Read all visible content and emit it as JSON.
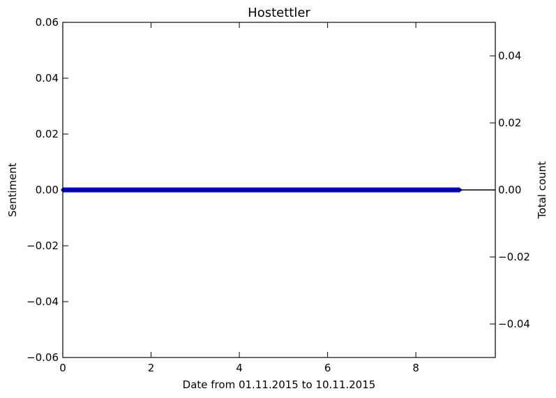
{
  "chart_data": {
    "type": "line",
    "title": "Hostettler",
    "xlabel": "Date from 01.11.2015 to 10.11.2015",
    "ylabel": "Sentiment",
    "y2label": "Total count",
    "xlim": [
      0,
      9.8
    ],
    "ylim": [
      -0.06,
      0.06
    ],
    "y2lim": [
      -0.05,
      0.05
    ],
    "x_ticks": [
      "0",
      "2",
      "4",
      "6",
      "8"
    ],
    "y_ticks": [
      "−0.06",
      "−0.04",
      "−0.02",
      "0.00",
      "0.02",
      "0.04",
      "0.06"
    ],
    "y2_ticks": [
      "−0.04",
      "−0.02",
      "0.00",
      "0.02",
      "0.04"
    ],
    "series": [
      {
        "axis": "left",
        "color": "#0000ff",
        "x": [
          0,
          1,
          2,
          3,
          4,
          5,
          6,
          7,
          8,
          9
        ],
        "values": [
          0,
          0,
          0,
          0,
          0,
          0,
          0,
          0,
          0,
          0
        ]
      },
      {
        "axis": "right",
        "color": "#000000",
        "x": [
          0,
          1,
          2,
          3,
          4,
          5,
          6,
          7,
          8,
          9,
          9.8
        ],
        "values": [
          0,
          0,
          0,
          0,
          0,
          0,
          0,
          0,
          0,
          0,
          0
        ]
      }
    ],
    "grid": false,
    "legend": "none"
  }
}
